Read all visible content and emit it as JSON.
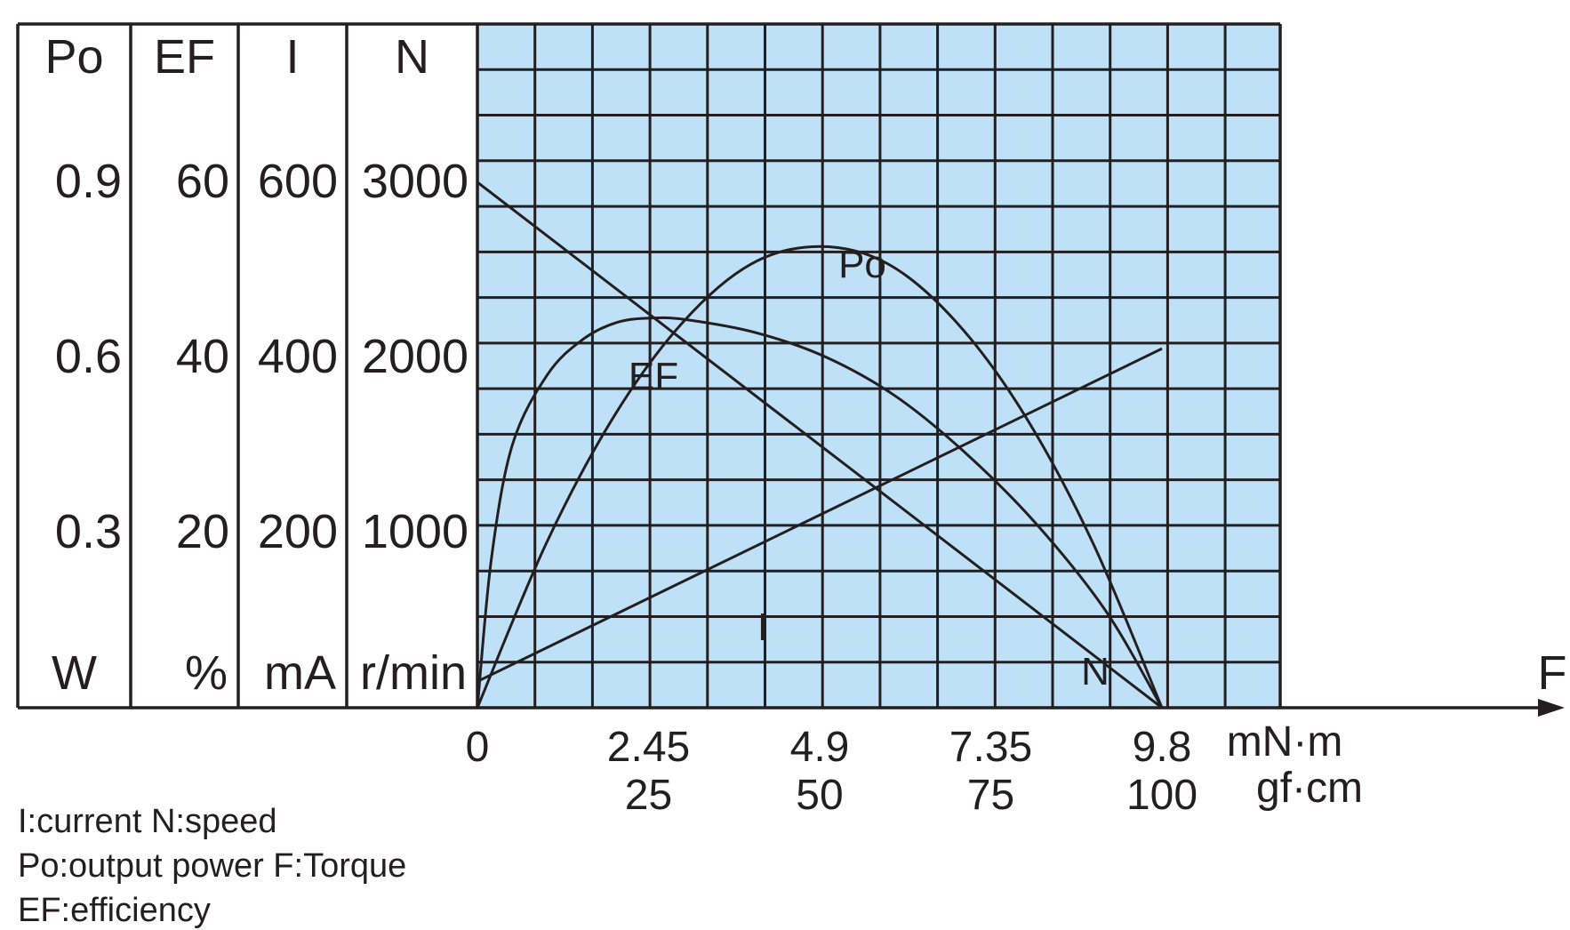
{
  "chart_data": {
    "type": "line",
    "background_color": "#bfe1f7",
    "line_color": "#231f20",
    "grid": true,
    "x_axis": {
      "name": "F",
      "unit_primary": "mN·m",
      "unit_secondary": "gf·cm",
      "range": [
        0,
        9.8
      ],
      "ticks": [
        {
          "value": 0,
          "primary": "0",
          "secondary": ""
        },
        {
          "value": 2.45,
          "primary": "2.45",
          "secondary": "25"
        },
        {
          "value": 4.9,
          "primary": "4.9",
          "secondary": "50"
        },
        {
          "value": 7.35,
          "primary": "7.35",
          "secondary": "75"
        },
        {
          "value": 9.8,
          "primary": "9.8",
          "secondary": "100"
        }
      ]
    },
    "y_axes": [
      {
        "key": "Po",
        "label": "Po",
        "unit": "W",
        "range": [
          0,
          1.2
        ],
        "ticks": [
          "0.3",
          "0.6",
          "0.9"
        ]
      },
      {
        "key": "EF",
        "label": "EF",
        "unit": "%",
        "range": [
          0,
          80
        ],
        "ticks": [
          "20",
          "40",
          "60"
        ]
      },
      {
        "key": "I",
        "label": "I",
        "unit": "mA",
        "range": [
          0,
          800
        ],
        "ticks": [
          "200",
          "400",
          "600"
        ]
      },
      {
        "key": "N",
        "label": "N",
        "unit": "r/min",
        "range": [
          0,
          4000
        ],
        "ticks": [
          "1000",
          "2000",
          "3000"
        ]
      }
    ],
    "series": [
      {
        "name": "N",
        "axis": "N",
        "x": [
          0,
          9.8
        ],
        "y": [
          3000,
          0
        ]
      },
      {
        "name": "I",
        "axis": "I",
        "x": [
          0,
          9.8
        ],
        "y": [
          30,
          410
        ]
      },
      {
        "name": "Po",
        "axis": "Po",
        "x": [
          0,
          0.98,
          1.96,
          2.94,
          3.92,
          4.9,
          5.88,
          6.86,
          7.84,
          8.82,
          9.8
        ],
        "y": [
          0,
          0.28,
          0.5,
          0.66,
          0.76,
          0.79,
          0.76,
          0.66,
          0.5,
          0.28,
          0
        ]
      },
      {
        "name": "EF",
        "axis": "EF",
        "x": [
          0,
          0.2,
          0.5,
          1.0,
          1.5,
          2.0,
          2.5,
          3.0,
          4.0,
          5.0,
          6.0,
          7.0,
          8.0,
          9.0,
          9.8
        ],
        "y": [
          0,
          17,
          30,
          38,
          42,
          44,
          44.5,
          44.3,
          42.8,
          40,
          35.5,
          29,
          21,
          11,
          0
        ]
      }
    ]
  },
  "legend": {
    "line1": "I:current  N:speed",
    "line2": "Po:output power  F:Torque",
    "line3": "EF:efficiency"
  }
}
